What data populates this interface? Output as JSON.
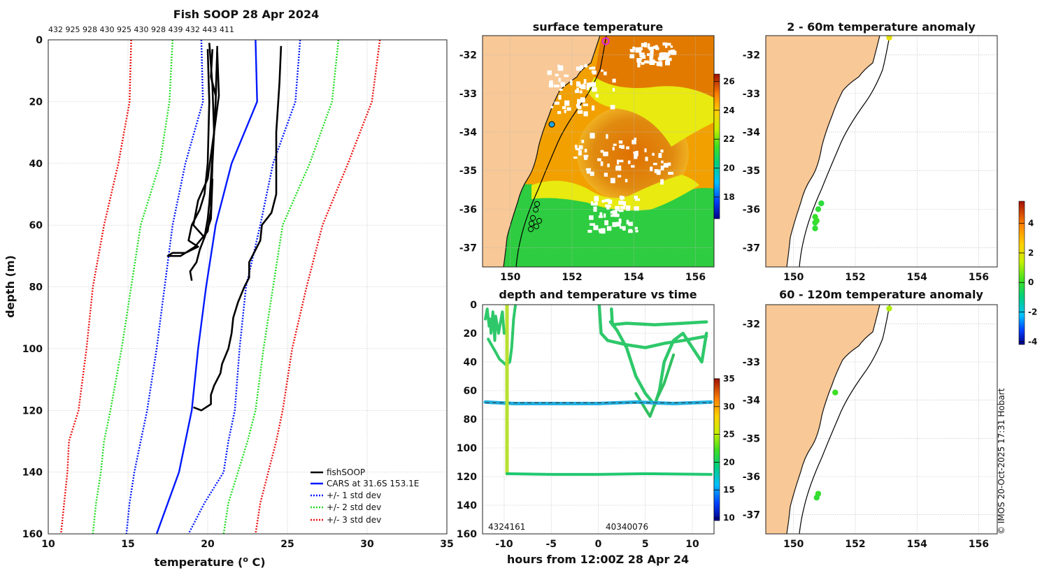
{
  "copyright": "© IMOS 20-Oct-2025 17:31 Hobart",
  "chart_data": [
    {
      "id": "profile",
      "type": "line",
      "title": "Fish SOOP 28 Apr 2024",
      "id_labels": "432 925 928 430 925 430 928 439 432 443 411",
      "xlabel": "temperature (",
      "xlabel_sup": "o",
      "xlabel_end": " C)",
      "ylabel": "depth (m)",
      "xlim": [
        10,
        35
      ],
      "ylim": [
        0,
        160
      ],
      "xticks": [
        "10",
        "15",
        "20",
        "25",
        "30",
        "35"
      ],
      "yticks": [
        "0",
        "20",
        "40",
        "60",
        "80",
        "100",
        "120",
        "140",
        "160"
      ],
      "legend": [
        "fishSOOP",
        "CARS at 31.6S 153.1E",
        "+/- 1 std dev",
        "+/- 2 std dev",
        "+/- 3 std dev"
      ],
      "colors": {
        "fish": "#000000",
        "cars": "#0018ff",
        "sd1": "#0018ff",
        "sd2": "#22dd22",
        "sd3": "#ee1111"
      },
      "series": {
        "cars": [
          [
            23.0,
            0
          ],
          [
            23.1,
            20
          ],
          [
            21.5,
            40
          ],
          [
            20.5,
            60
          ],
          [
            19.9,
            80
          ],
          [
            19.4,
            100
          ],
          [
            19.0,
            120
          ],
          [
            18.6,
            130
          ],
          [
            18.2,
            140
          ],
          [
            17.5,
            150
          ],
          [
            16.8,
            160
          ]
        ],
        "sd1_low": [
          [
            19.6,
            0
          ],
          [
            19.7,
            20
          ],
          [
            18.6,
            40
          ],
          [
            17.8,
            60
          ],
          [
            17.3,
            80
          ],
          [
            16.8,
            100
          ],
          [
            16.2,
            120
          ],
          [
            15.8,
            130
          ],
          [
            15.4,
            140
          ],
          [
            15.1,
            150
          ],
          [
            14.9,
            160
          ]
        ],
        "sd1_high": [
          [
            25.8,
            0
          ],
          [
            25.5,
            20
          ],
          [
            24.1,
            40
          ],
          [
            23.3,
            60
          ],
          [
            22.4,
            80
          ],
          [
            22.0,
            100
          ],
          [
            21.7,
            120
          ],
          [
            21.3,
            130
          ],
          [
            21.0,
            140
          ],
          [
            19.8,
            150
          ],
          [
            18.8,
            160
          ]
        ],
        "sd2_low": [
          [
            17.8,
            0
          ],
          [
            17.6,
            20
          ],
          [
            17.0,
            40
          ],
          [
            15.8,
            60
          ],
          [
            15.2,
            80
          ],
          [
            14.6,
            100
          ],
          [
            13.9,
            120
          ],
          [
            13.5,
            130
          ],
          [
            13.3,
            140
          ],
          [
            13.0,
            150
          ],
          [
            12.8,
            160
          ]
        ],
        "sd2_high": [
          [
            28.2,
            0
          ],
          [
            27.8,
            20
          ],
          [
            26.4,
            40
          ],
          [
            24.7,
            60
          ],
          [
            24.1,
            80
          ],
          [
            23.5,
            100
          ],
          [
            23.0,
            120
          ],
          [
            22.5,
            130
          ],
          [
            21.9,
            140
          ],
          [
            21.3,
            150
          ],
          [
            21.0,
            160
          ]
        ],
        "sd3_low": [
          [
            15.2,
            0
          ],
          [
            15.1,
            20
          ],
          [
            14.4,
            40
          ],
          [
            13.5,
            60
          ],
          [
            12.8,
            80
          ],
          [
            12.4,
            100
          ],
          [
            11.9,
            120
          ],
          [
            11.3,
            130
          ],
          [
            11.2,
            140
          ],
          [
            11.0,
            150
          ],
          [
            10.8,
            160
          ]
        ],
        "sd3_high": [
          [
            30.8,
            0
          ],
          [
            30.3,
            20
          ],
          [
            28.8,
            40
          ],
          [
            27.2,
            60
          ],
          [
            26.2,
            80
          ],
          [
            25.3,
            100
          ],
          [
            24.7,
            120
          ],
          [
            24.3,
            130
          ],
          [
            23.8,
            140
          ],
          [
            23.3,
            150
          ],
          [
            23.0,
            160
          ]
        ],
        "fish_a": [
          [
            24.6,
            2
          ],
          [
            24.5,
            14
          ],
          [
            24.3,
            30
          ],
          [
            24.3,
            50
          ],
          [
            24.0,
            56
          ],
          [
            23.4,
            60
          ],
          [
            23.3,
            65
          ],
          [
            23.0,
            68
          ],
          [
            22.6,
            72
          ],
          [
            22.6,
            77
          ],
          [
            22.3,
            80
          ],
          [
            21.9,
            85
          ],
          [
            21.6,
            90
          ],
          [
            21.5,
            95
          ],
          [
            21.3,
            100
          ],
          [
            20.9,
            105
          ],
          [
            20.8,
            108
          ],
          [
            20.4,
            112
          ],
          [
            20.2,
            115
          ],
          [
            20.2,
            118
          ],
          [
            19.6,
            120
          ],
          [
            19.1,
            119
          ]
        ],
        "fish_b": [
          [
            20.1,
            1
          ],
          [
            20.3,
            15
          ],
          [
            20.4,
            30
          ],
          [
            20.2,
            45
          ],
          [
            20.1,
            53
          ],
          [
            20.0,
            58
          ],
          [
            19.8,
            64
          ],
          [
            19.5,
            68
          ],
          [
            19.3,
            72
          ],
          [
            18.9,
            75
          ],
          [
            19.0,
            78
          ]
        ],
        "fish_c": [
          [
            20.0,
            3
          ],
          [
            20.1,
            20
          ],
          [
            20.0,
            40
          ],
          [
            19.8,
            50
          ],
          [
            19.5,
            55
          ],
          [
            19.0,
            60
          ],
          [
            18.8,
            65
          ],
          [
            19.4,
            67
          ],
          [
            18.6,
            69
          ],
          [
            17.8,
            69
          ],
          [
            17.5,
            70
          ],
          [
            18.3,
            70
          ],
          [
            19.2,
            67
          ],
          [
            20.0,
            62
          ],
          [
            20.2,
            55
          ],
          [
            20.3,
            40
          ],
          [
            20.5,
            20
          ],
          [
            20.6,
            2
          ]
        ],
        "fish_d": [
          [
            20.3,
            3
          ],
          [
            20.2,
            12
          ],
          [
            20.5,
            18
          ],
          [
            20.6,
            4
          ],
          [
            20.7,
            18
          ],
          [
            20.4,
            30
          ],
          [
            20.0,
            45
          ],
          [
            19.4,
            52
          ],
          [
            19.1,
            60
          ],
          [
            19.8,
            64
          ],
          [
            20.2,
            58
          ],
          [
            20.3,
            45
          ]
        ]
      }
    },
    {
      "id": "sst",
      "type": "heatmap",
      "title": "surface temperature",
      "xticks": [
        "150",
        "152",
        "154",
        "156"
      ],
      "yticks": [
        "-32",
        "-33",
        "-34",
        "-35",
        "-36",
        "-37"
      ],
      "xlim": [
        149.1,
        156.6
      ],
      "ylim": [
        -37.5,
        -31.5
      ],
      "colorbar_ticks": [
        "26",
        "24",
        "22",
        "20",
        "18"
      ],
      "colorbar_range": [
        16.5,
        26.5
      ]
    },
    {
      "id": "time",
      "type": "scatter",
      "title": "depth and temperature vs time",
      "xlabel": "hours from 12:00Z 28 Apr 24",
      "xticks": [
        "-10",
        "-5",
        "0",
        "5",
        "10"
      ],
      "yticks": [
        "0",
        "20",
        "40",
        "60",
        "80",
        "100",
        "120",
        "140",
        "160"
      ],
      "xlim": [
        -12.3,
        12.3
      ],
      "ylim": [
        0,
        160
      ],
      "colorbar_ticks": [
        "35",
        "30",
        "25",
        "20",
        "15",
        "10"
      ],
      "colorbar_range": [
        9.5,
        35
      ],
      "bottom_labels_left": "4324161",
      "bottom_labels_right": "40340076"
    },
    {
      "id": "anom1",
      "type": "scatter",
      "title": "2 - 60m temperature anomaly",
      "xticks": [
        "150",
        "152",
        "154",
        "156"
      ],
      "yticks": [
        "-32",
        "-33",
        "-34",
        "-35",
        "-36",
        "-37"
      ],
      "xlim": [
        149.1,
        156.6
      ],
      "ylim": [
        -37.5,
        -31.5
      ],
      "points": [
        [
          153.1,
          -31.55,
          2.4
        ],
        [
          150.9,
          -35.85,
          0.3
        ],
        [
          150.8,
          -36.0,
          0.4
        ],
        [
          150.7,
          -36.2,
          0.5
        ],
        [
          150.7,
          -36.35,
          0.4
        ],
        [
          150.7,
          -36.5,
          0.4
        ],
        [
          150.75,
          -36.3,
          0.5
        ]
      ]
    },
    {
      "id": "anom2",
      "type": "scatter",
      "title": "60 - 120m temperature anomaly",
      "xticks": [
        "150",
        "152",
        "154",
        "156"
      ],
      "yticks": [
        "-32",
        "-33",
        "-34",
        "-35",
        "-36",
        "-37"
      ],
      "xlim": [
        149.1,
        156.6
      ],
      "ylim": [
        -37.5,
        -31.5
      ],
      "points": [
        [
          153.1,
          -31.6,
          1.6
        ],
        [
          151.35,
          -33.8,
          0.6
        ],
        [
          150.8,
          -36.45,
          0.5
        ],
        [
          150.75,
          -36.55,
          0.4
        ]
      ],
      "colorbar_ticks": [
        "4",
        "2",
        "0",
        "-2",
        "-4"
      ],
      "colorbar_range": [
        -4.2,
        5.5
      ]
    }
  ]
}
